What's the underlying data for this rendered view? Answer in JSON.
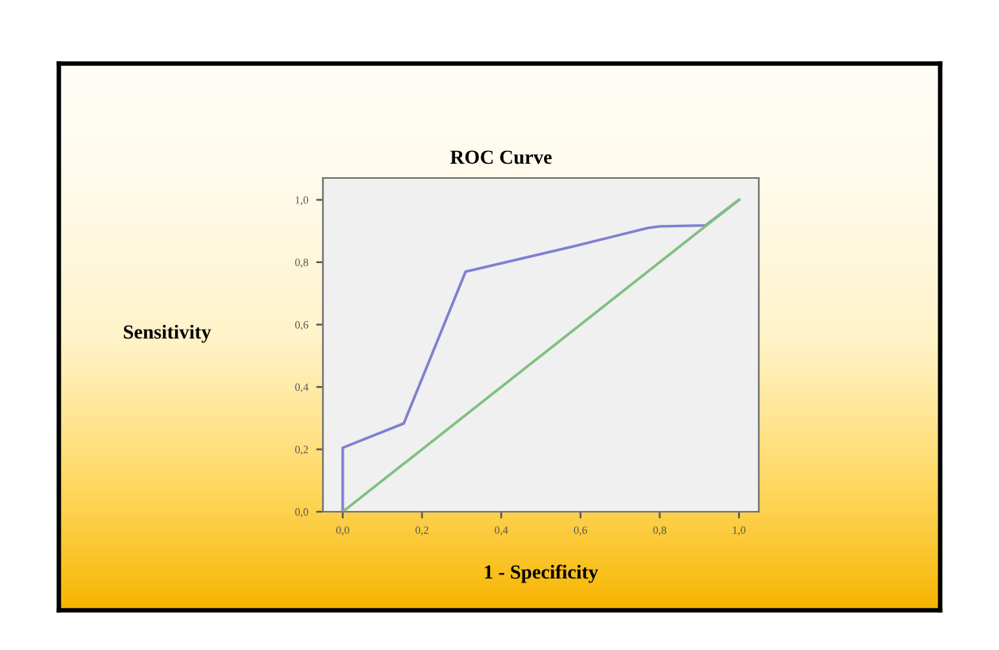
{
  "chart_data": {
    "type": "line",
    "title": "ROC Curve",
    "xlabel": "1 - Specificity",
    "ylabel": "Sensitivity",
    "xlim": [
      -0.05,
      1.05
    ],
    "ylim": [
      0,
      1.07
    ],
    "xticks": [
      {
        "value": 0,
        "label": "0,0"
      },
      {
        "value": 0.2,
        "label": "0,2"
      },
      {
        "value": 0.4,
        "label": "0,4"
      },
      {
        "value": 0.6,
        "label": "0,6"
      },
      {
        "value": 0.8,
        "label": "0,8"
      },
      {
        "value": 1.0,
        "label": "1,0"
      }
    ],
    "yticks": [
      {
        "value": 0,
        "label": "0,0"
      },
      {
        "value": 0.2,
        "label": "0,2"
      },
      {
        "value": 0.4,
        "label": "0,4"
      },
      {
        "value": 0.6,
        "label": "0,6"
      },
      {
        "value": 0.8,
        "label": "0,8"
      },
      {
        "value": 1.0,
        "label": "1,0"
      }
    ],
    "grid": false,
    "legend": false,
    "marker": "none",
    "line_style": "solid",
    "series": [
      {
        "color": "#7f7fd0",
        "x": [
          0,
          0,
          0.154,
          0.31,
          0.59,
          0.77,
          0.8,
          0.916,
          1.0
        ],
        "values": [
          0,
          0.205,
          0.283,
          0.77,
          0.853,
          0.91,
          0.915,
          0.918,
          1.0
        ]
      },
      {
        "color": "#80c080",
        "x": [
          0,
          1
        ],
        "values": [
          0,
          1
        ]
      }
    ]
  }
}
